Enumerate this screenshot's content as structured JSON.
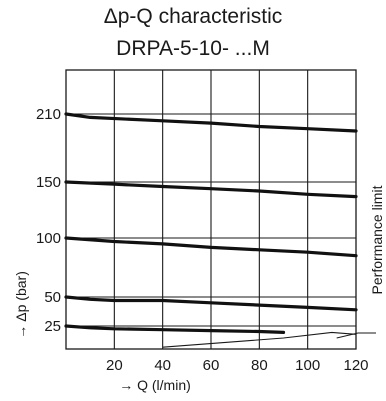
{
  "chart_data": {
    "type": "line",
    "title": "Δp-Q characteristic",
    "subtitle": "DRPA-5-10- ...M",
    "xlabel": "→ Q (l/min)",
    "ylabel": "→ Δp (bar)",
    "x_ticks": [
      20,
      40,
      60,
      80,
      100,
      120
    ],
    "y_tick_labels": [
      25,
      50,
      100,
      150,
      210
    ],
    "xlim": [
      0,
      120
    ],
    "grid": true,
    "series": [
      {
        "x": [
          0,
          10,
          40,
          60,
          80,
          100,
          120
        ],
        "y": [
          210,
          207,
          204,
          202,
          199,
          197,
          195
        ]
      },
      {
        "x": [
          0,
          20,
          40,
          60,
          80,
          100,
          120
        ],
        "y": [
          150,
          148,
          146,
          144,
          142,
          139,
          137
        ]
      },
      {
        "x": [
          0,
          20,
          40,
          60,
          80,
          100,
          120
        ],
        "y": [
          100,
          97,
          95,
          92,
          90,
          88,
          85
        ]
      },
      {
        "x": [
          0,
          10,
          20,
          40,
          60,
          80,
          100,
          120
        ],
        "y": [
          50,
          48,
          47,
          47,
          45,
          43,
          41,
          39
        ]
      },
      {
        "x": [
          0,
          10,
          20,
          40,
          60,
          80,
          90
        ],
        "y": [
          25,
          23,
          22,
          21,
          20,
          19,
          18
        ]
      }
    ],
    "performance_limit": {
      "label": "Performance limit",
      "x": [
        40,
        90,
        110,
        120
      ],
      "y": [
        2,
        12,
        18,
        16
      ]
    }
  }
}
